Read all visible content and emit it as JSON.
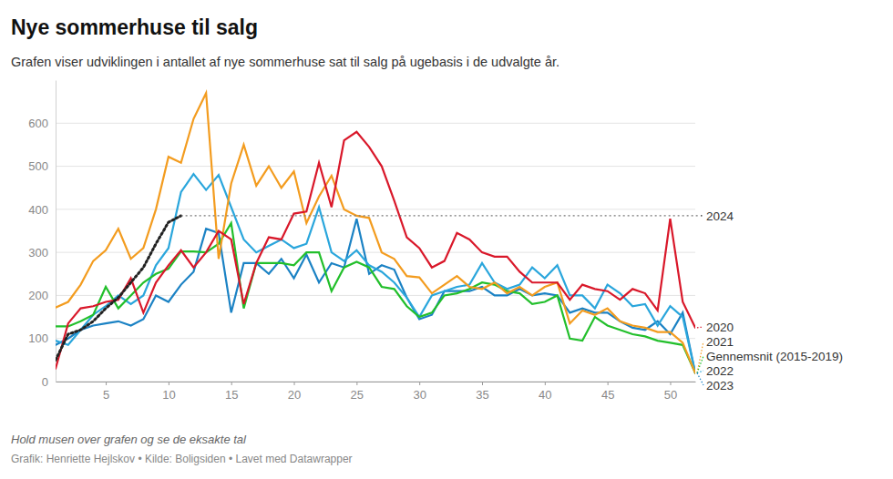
{
  "chart_data": {
    "type": "line",
    "title": "Nye sommerhuse til salg",
    "subtitle": "Grafen viser udviklingen i antallet af nye sommerhuse sat til salg på ugebasis i de udvalgte år.",
    "annotations": [
      "Hold musen over grafen og se de eksakte tal",
      "Grafik: Henriette Hejlskov • Kilde: Boligsiden • Lavet med Datawrapper"
    ],
    "x": [
      1,
      2,
      3,
      4,
      5,
      6,
      7,
      8,
      9,
      10,
      11,
      12,
      13,
      14,
      15,
      16,
      17,
      18,
      19,
      20,
      21,
      22,
      23,
      24,
      25,
      26,
      27,
      28,
      29,
      30,
      31,
      32,
      33,
      34,
      35,
      36,
      37,
      38,
      39,
      40,
      41,
      42,
      43,
      44,
      45,
      46,
      47,
      48,
      49,
      50,
      51,
      52
    ],
    "xlim": [
      1,
      52
    ],
    "xticks": [
      5,
      10,
      15,
      20,
      25,
      30,
      35,
      40,
      45,
      50
    ],
    "ylim": [
      0,
      700
    ],
    "yticks": [
      0,
      100,
      200,
      300,
      400,
      500,
      600
    ],
    "grid": true,
    "legend": "right",
    "series": [
      {
        "name": "2024",
        "color": "#222222",
        "line_style": "dotted",
        "values": [
          50,
          110,
          120,
          140,
          170,
          195,
          230,
          265,
          320,
          370,
          385,
          null,
          null,
          null,
          null,
          null,
          null,
          null,
          null,
          null,
          null,
          null,
          null,
          null,
          null,
          null,
          null,
          null,
          null,
          null,
          null,
          null,
          null,
          null,
          null,
          null,
          null,
          null,
          null,
          null,
          null,
          null,
          null,
          null,
          null,
          null,
          null,
          null,
          null,
          null,
          null,
          null
        ]
      },
      {
        "name": "2020",
        "color": "#d9182a",
        "line_style": "solid",
        "values": [
          30,
          135,
          170,
          175,
          185,
          190,
          240,
          160,
          230,
          270,
          305,
          265,
          300,
          350,
          330,
          180,
          275,
          335,
          330,
          390,
          395,
          508,
          405,
          560,
          580,
          545,
          500,
          420,
          335,
          310,
          265,
          280,
          345,
          330,
          300,
          290,
          290,
          255,
          230,
          230,
          230,
          190,
          225,
          215,
          210,
          190,
          215,
          205,
          165,
          378,
          185,
          125
        ]
      },
      {
        "name": "2021",
        "color": "#f39c1f",
        "line_style": "solid",
        "values": [
          172,
          185,
          225,
          280,
          305,
          355,
          285,
          310,
          400,
          522,
          508,
          610,
          670,
          285,
          460,
          550,
          455,
          500,
          450,
          488,
          368,
          430,
          478,
          400,
          385,
          380,
          300,
          285,
          245,
          242,
          205,
          225,
          245,
          220,
          215,
          230,
          205,
          220,
          200,
          220,
          230,
          135,
          165,
          155,
          170,
          140,
          130,
          125,
          115,
          115,
          90,
          20
        ]
      },
      {
        "name": "Gennemsnit (2015-2019)",
        "color": "#22bf2b",
        "line_style": "solid",
        "values": [
          128,
          128,
          140,
          155,
          220,
          170,
          200,
          230,
          250,
          262,
          302,
          302,
          300,
          320,
          368,
          170,
          275,
          275,
          275,
          270,
          300,
          300,
          210,
          265,
          278,
          265,
          220,
          215,
          175,
          150,
          160,
          200,
          205,
          215,
          230,
          225,
          210,
          205,
          180,
          185,
          200,
          100,
          95,
          150,
          130,
          120,
          110,
          105,
          95,
          90,
          85,
          20
        ]
      },
      {
        "name": "2022",
        "color": "#2aa6dc",
        "line_style": "solid",
        "values": [
          95,
          85,
          120,
          155,
          175,
          200,
          180,
          200,
          270,
          310,
          440,
          482,
          445,
          480,
          405,
          330,
          300,
          315,
          330,
          310,
          320,
          405,
          300,
          280,
          305,
          270,
          255,
          230,
          195,
          150,
          200,
          210,
          220,
          225,
          275,
          230,
          215,
          225,
          265,
          240,
          270,
          200,
          200,
          170,
          225,
          205,
          175,
          180,
          130,
          175,
          150,
          20
        ]
      },
      {
        "name": "2023",
        "color": "#1b82c4",
        "line_style": "solid",
        "values": [
          85,
          100,
          120,
          130,
          135,
          140,
          130,
          145,
          200,
          185,
          225,
          255,
          355,
          345,
          160,
          275,
          275,
          250,
          285,
          240,
          295,
          230,
          275,
          265,
          378,
          250,
          270,
          260,
          195,
          145,
          155,
          210,
          210,
          210,
          220,
          200,
          200,
          215,
          200,
          205,
          200,
          160,
          170,
          160,
          160,
          140,
          125,
          120,
          140,
          110,
          160,
          20
        ]
      }
    ]
  }
}
